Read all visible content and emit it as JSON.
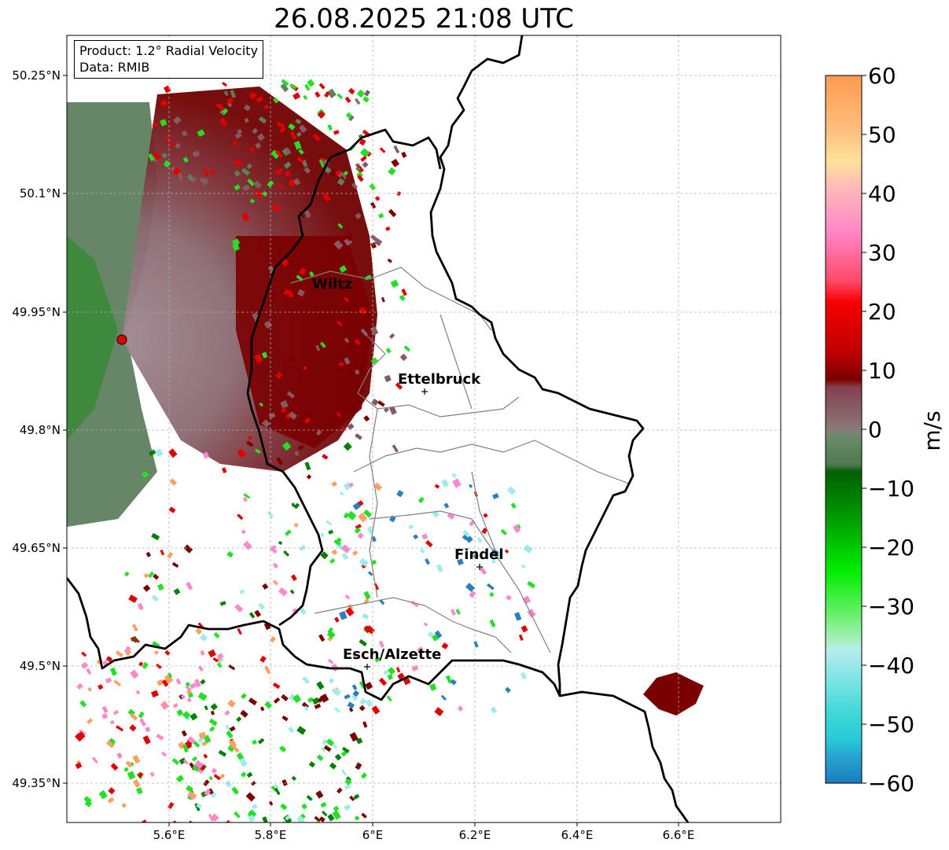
{
  "title": "26.08.2025 21:08 UTC",
  "info": {
    "product": "Product: 1.2° Radial Velocity",
    "data": "Data: RMIB"
  },
  "axes": {
    "lat_ticks": [
      "50.25°N",
      "50.1°N",
      "49.95°N",
      "49.8°N",
      "49.65°N",
      "49.5°N",
      "49.35°N"
    ],
    "lon_ticks": [
      "5.6°E",
      "5.8°E",
      "6°E",
      "6.2°E",
      "6.4°E",
      "6.6°E"
    ],
    "lon_range": [
      5.4,
      6.8
    ],
    "lat_range": [
      49.3,
      50.3
    ]
  },
  "colorbar": {
    "label": "m/s",
    "ticks": [
      "60",
      "50",
      "40",
      "30",
      "20",
      "10",
      "0",
      "−10",
      "−20",
      "−30",
      "−40",
      "−50",
      "−60"
    ],
    "range": [
      -60,
      60
    ]
  },
  "cities": [
    {
      "name": "Wiltz"
    },
    {
      "name": "Ettelbruck"
    },
    {
      "name": "Findel"
    },
    {
      "name": "Esch/Alzette"
    }
  ],
  "colors": {
    "dark_red": "#7a0000",
    "red": "#e00000",
    "muted_red": "#855a62",
    "muted_green": "#5f7f5f",
    "green": "#008000",
    "bright_green": "#22e022",
    "light_cyan": "#a0ecec",
    "pink": "#ff88cc",
    "orange": "#ffa060",
    "blue": "#2a7fc0"
  }
}
